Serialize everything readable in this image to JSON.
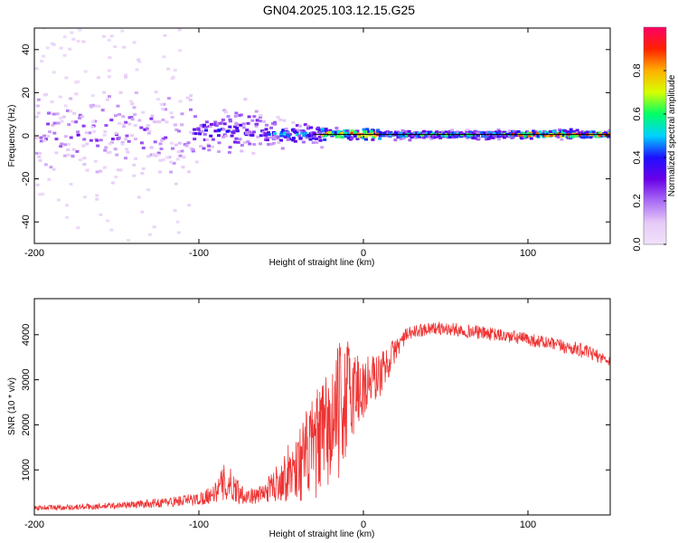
{
  "title": "GN04.2025.103.12.15.G25",
  "chart_data": [
    {
      "type": "heatmap",
      "name": "spectrogram",
      "xlabel": "Height of straight line (km)",
      "ylabel": "Frequency (Hz)",
      "xlim": [
        -200,
        150
      ],
      "ylim": [
        -50,
        50
      ],
      "xticks": [
        -200,
        -100,
        0,
        100
      ],
      "yticks": [
        -40,
        -20,
        0,
        20,
        40
      ],
      "colorbar": {
        "label": "Normalized spectral amplitude",
        "range": [
          0,
          1
        ],
        "ticks": [
          "0.0",
          "0.2",
          "0.4",
          "0.6",
          "0.8"
        ],
        "tick_values": [
          0.0,
          0.2,
          0.4,
          0.6,
          0.8
        ],
        "stops": [
          "#f0e2fa",
          "#e6c9f7",
          "#a96cf5",
          "#6a00e8",
          "#1f10ff",
          "#00d2ff",
          "#00ff66",
          "#d6ff00",
          "#ffb000",
          "#ff2200",
          "#ff0066"
        ]
      },
      "tone_line": {
        "frequency_hz": 0.6,
        "color": "#000000"
      },
      "clusters": [
        {
          "x": [
            -200,
            -105
          ],
          "f_center": 2,
          "f_spread": 9,
          "amp": 0.22,
          "density": 0.55
        },
        {
          "x": [
            -200,
            -105
          ],
          "f_center": 5,
          "f_spread": 40,
          "amp": 0.07,
          "density": 0.3
        },
        {
          "x": [
            -105,
            -60
          ],
          "f_center": 2,
          "f_spread": 5,
          "amp": 0.3,
          "density": 0.7
        },
        {
          "x": [
            -60,
            -25
          ],
          "f_center": 0.8,
          "f_spread": 2.5,
          "amp": 0.38,
          "density": 0.8
        },
        {
          "x": [
            -25,
            10
          ],
          "f_center": 0.8,
          "f_spread": 1.2,
          "amp": 0.72,
          "density": 0.9
        },
        {
          "x": [
            10,
            90
          ],
          "f_center": 0.5,
          "f_spread": 0.9,
          "amp": 0.5,
          "density": 0.95
        },
        {
          "x": [
            90,
            150
          ],
          "f_center": 0.6,
          "f_spread": 0.8,
          "amp": 0.8,
          "density": 0.95
        }
      ]
    },
    {
      "type": "line",
      "name": "snr",
      "xlabel": "Height of straight line (km)",
      "ylabel": "SNR (10 * v/v)",
      "xlim": [
        -200,
        150
      ],
      "ylim": [
        0,
        4800
      ],
      "xticks": [
        -200,
        -100,
        0,
        100
      ],
      "yticks": [
        1000,
        2000,
        3000,
        4000
      ],
      "color": "#ee3333",
      "x": [
        -200,
        -180,
        -160,
        -140,
        -120,
        -100,
        -90,
        -85,
        -80,
        -75,
        -70,
        -65,
        -60,
        -55,
        -50,
        -45,
        -40,
        -35,
        -30,
        -25,
        -20,
        -15,
        -10,
        -5,
        0,
        5,
        10,
        15,
        20,
        25,
        30,
        40,
        60,
        80,
        100,
        120,
        130,
        140,
        150
      ],
      "values": [
        160,
        170,
        190,
        230,
        280,
        350,
        500,
        700,
        650,
        500,
        420,
        420,
        500,
        650,
        800,
        950,
        1100,
        1300,
        1500,
        1700,
        1900,
        2300,
        2600,
        2800,
        2800,
        3000,
        3100,
        3400,
        3700,
        3950,
        4050,
        4150,
        4100,
        4000,
        3900,
        3750,
        3680,
        3560,
        3420
      ],
      "noise": [
        60,
        60,
        70,
        80,
        110,
        150,
        220,
        420,
        380,
        250,
        180,
        170,
        230,
        350,
        500,
        650,
        800,
        1000,
        1150,
        1300,
        1400,
        1500,
        1400,
        1000,
        800,
        600,
        500,
        400,
        250,
        180,
        150,
        140,
        150,
        150,
        150,
        150,
        160,
        140,
        120
      ]
    }
  ]
}
